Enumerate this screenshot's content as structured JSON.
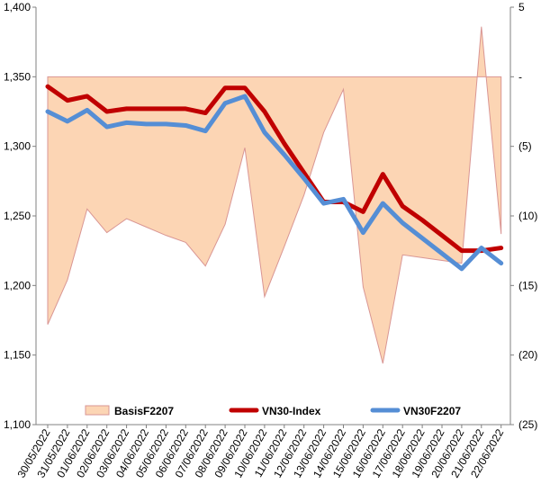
{
  "chart_data": {
    "type": "line",
    "title": "",
    "x": [
      "30/05/2022",
      "31/05/2022",
      "01/06/2022",
      "02/06/2022",
      "03/06/2022",
      "04/06/2022",
      "05/06/2022",
      "06/06/2022",
      "07/06/2022",
      "08/06/2022",
      "09/06/2022",
      "10/06/2022",
      "11/06/2022",
      "12/06/2022",
      "13/06/2022",
      "14/06/2022",
      "15/06/2022",
      "16/06/2022",
      "17/06/2022",
      "18/06/2022",
      "19/06/2022",
      "20/06/2022",
      "21/06/2022",
      "22/06/2022"
    ],
    "left_axis": {
      "min": 1100,
      "max": 1400,
      "ticks": [
        1100,
        1150,
        1200,
        1250,
        1300,
        1350,
        1400
      ],
      "tick_labels": [
        "1,100",
        "1,150",
        "1,200",
        "1,250",
        "1,300",
        "1,350",
        "1,400"
      ]
    },
    "right_axis": {
      "min": -25,
      "max": 5,
      "ticks": [
        5,
        0,
        -5,
        -10,
        -15,
        -20,
        -25
      ],
      "tick_labels": [
        "5",
        "-",
        "(5)",
        "(10)",
        "(15)",
        "(20)",
        "(25)"
      ]
    },
    "grid": false,
    "legend_position": "bottom-inside",
    "series": [
      {
        "name": "BasisF2207",
        "kind": "area",
        "axis": "right",
        "color": "#fcd5b4",
        "edge_color": "#d99694",
        "values": [
          -17.8,
          -14.6,
          -9.5,
          -11.2,
          -10.2,
          -10.8,
          -11.4,
          -11.9,
          -13.6,
          -10.6,
          -5.1,
          -15.8,
          -12.2,
          -8.5,
          -4.0,
          -0.9,
          -15.1,
          -20.6,
          -12.8,
          -13.0,
          -13.2,
          -13.4,
          3.6,
          -11.3
        ]
      },
      {
        "name": "VN30-Index",
        "kind": "line",
        "axis": "left",
        "color": "#c00000",
        "values": [
          1343,
          1333,
          1336,
          1325,
          1327,
          1327,
          1327,
          1327,
          1324,
          1342,
          1342,
          1325,
          1302,
          1281,
          1260,
          1260,
          1253,
          1280,
          1257,
          1247,
          1236,
          1225,
          1225,
          1227
        ]
      },
      {
        "name": "VN30F2207",
        "kind": "line",
        "axis": "left",
        "color": "#558ed5",
        "values": [
          1325,
          1318,
          1326,
          1314,
          1317,
          1316,
          1316,
          1315,
          1311,
          1331,
          1336,
          1310,
          1294,
          1277,
          1259,
          1262,
          1238,
          1259,
          1245,
          1234,
          1223,
          1212,
          1227,
          1216
        ]
      }
    ]
  }
}
